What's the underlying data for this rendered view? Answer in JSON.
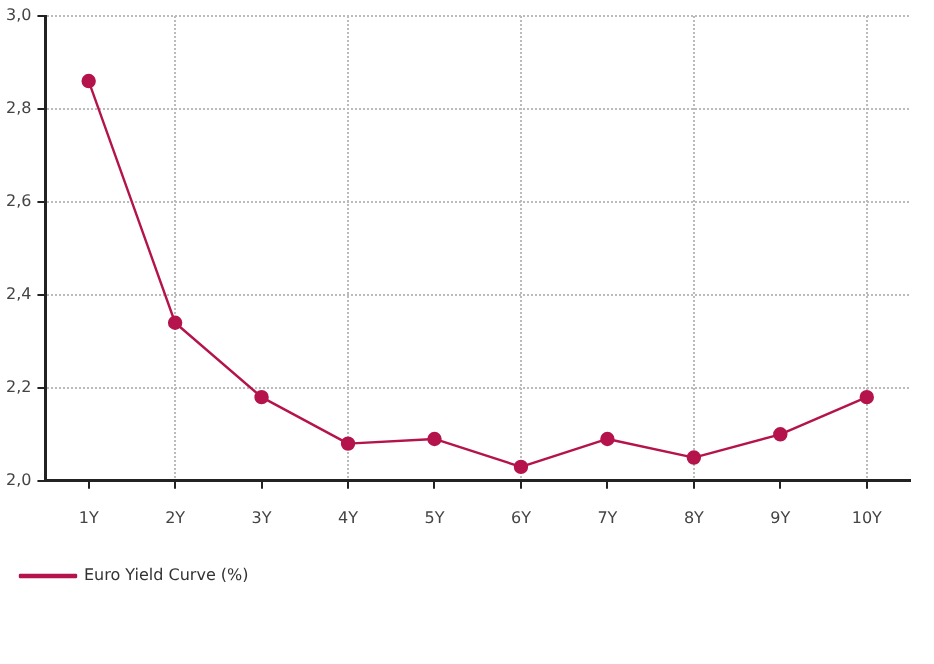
{
  "chart_data": {
    "type": "line",
    "categories": [
      "1Y",
      "2Y",
      "3Y",
      "4Y",
      "5Y",
      "6Y",
      "7Y",
      "8Y",
      "9Y",
      "10Y"
    ],
    "series": [
      {
        "name": "Euro Yield Curve (%)",
        "color": "#b5134b",
        "values": [
          2.86,
          2.34,
          2.18,
          2.08,
          2.09,
          2.03,
          2.09,
          2.05,
          2.1,
          2.18
        ]
      }
    ],
    "ylim": [
      2,
      3
    ],
    "yticks": [
      {
        "value": 2,
        "label": "2,0"
      },
      {
        "value": 2.2,
        "label": "2,2"
      },
      {
        "value": 2.4,
        "label": "2,4"
      },
      {
        "value": 2.6,
        "label": "2,6"
      },
      {
        "value": 2.8,
        "label": "2,8"
      },
      {
        "value": 3,
        "label": "3,0"
      }
    ],
    "grid": true,
    "legend": "bottom left",
    "marker": "circle",
    "line_style": "solid"
  }
}
